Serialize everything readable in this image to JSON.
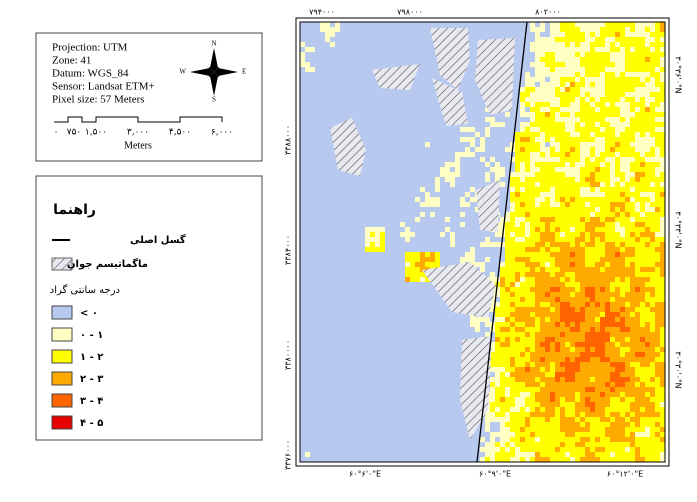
{
  "info": {
    "lines": [
      "Projection: UTM",
      "Zone: 41",
      "Datum: WGS_84",
      "Sensor: Landsat ETM+",
      "Pixel size: 57 Meters"
    ]
  },
  "compass": {
    "n": "N",
    "e": "E",
    "s": "S",
    "w": "W"
  },
  "scale": {
    "ticks": [
      "۰",
      "۷۵۰",
      "۱,۵۰۰",
      "۳,۰۰۰",
      "۴,۵۰۰",
      "۶,۰۰۰"
    ],
    "unit": "Meters"
  },
  "legend": {
    "title": "راهنما",
    "fault": "گسل اصلی",
    "magmatism": "ماگماتیسم جوان",
    "temp_title": "درجه سانتی گراد",
    "classes": [
      {
        "label": "< ۰",
        "color": "#b8c9f0"
      },
      {
        "label": "۰ - ۱",
        "color": "#ffffc4"
      },
      {
        "label": "۱ - ۲",
        "color": "#ffff00"
      },
      {
        "label": "۲ - ۳",
        "color": "#ffaa00"
      },
      {
        "label": "۳ - ۴",
        "color": "#ff6400"
      },
      {
        "label": "۴ - ۵",
        "color": "#e60000"
      }
    ]
  },
  "map": {
    "top": [
      "۷۹۴۰۰۰",
      "۷۹۸۰۰۰",
      "۸۰۲۰۰۰"
    ],
    "left": [
      "۳۳۸۸۰۰۰",
      "۳۳۸۴۰۰۰",
      "۳۳۸۰۰۰۰",
      "۳۳۷۶۰۰۰"
    ],
    "bottom": [
      "۶۰°۶'۰\"E",
      "۶۰°۹'۰\"E",
      "۶۰°۱۲'۰\"E"
    ],
    "right": [
      "۳۰°۳۶'۰\"N",
      "۳۰°۳۳'۰\"N",
      "۳۰°۳۰'۰\"N"
    ]
  }
}
